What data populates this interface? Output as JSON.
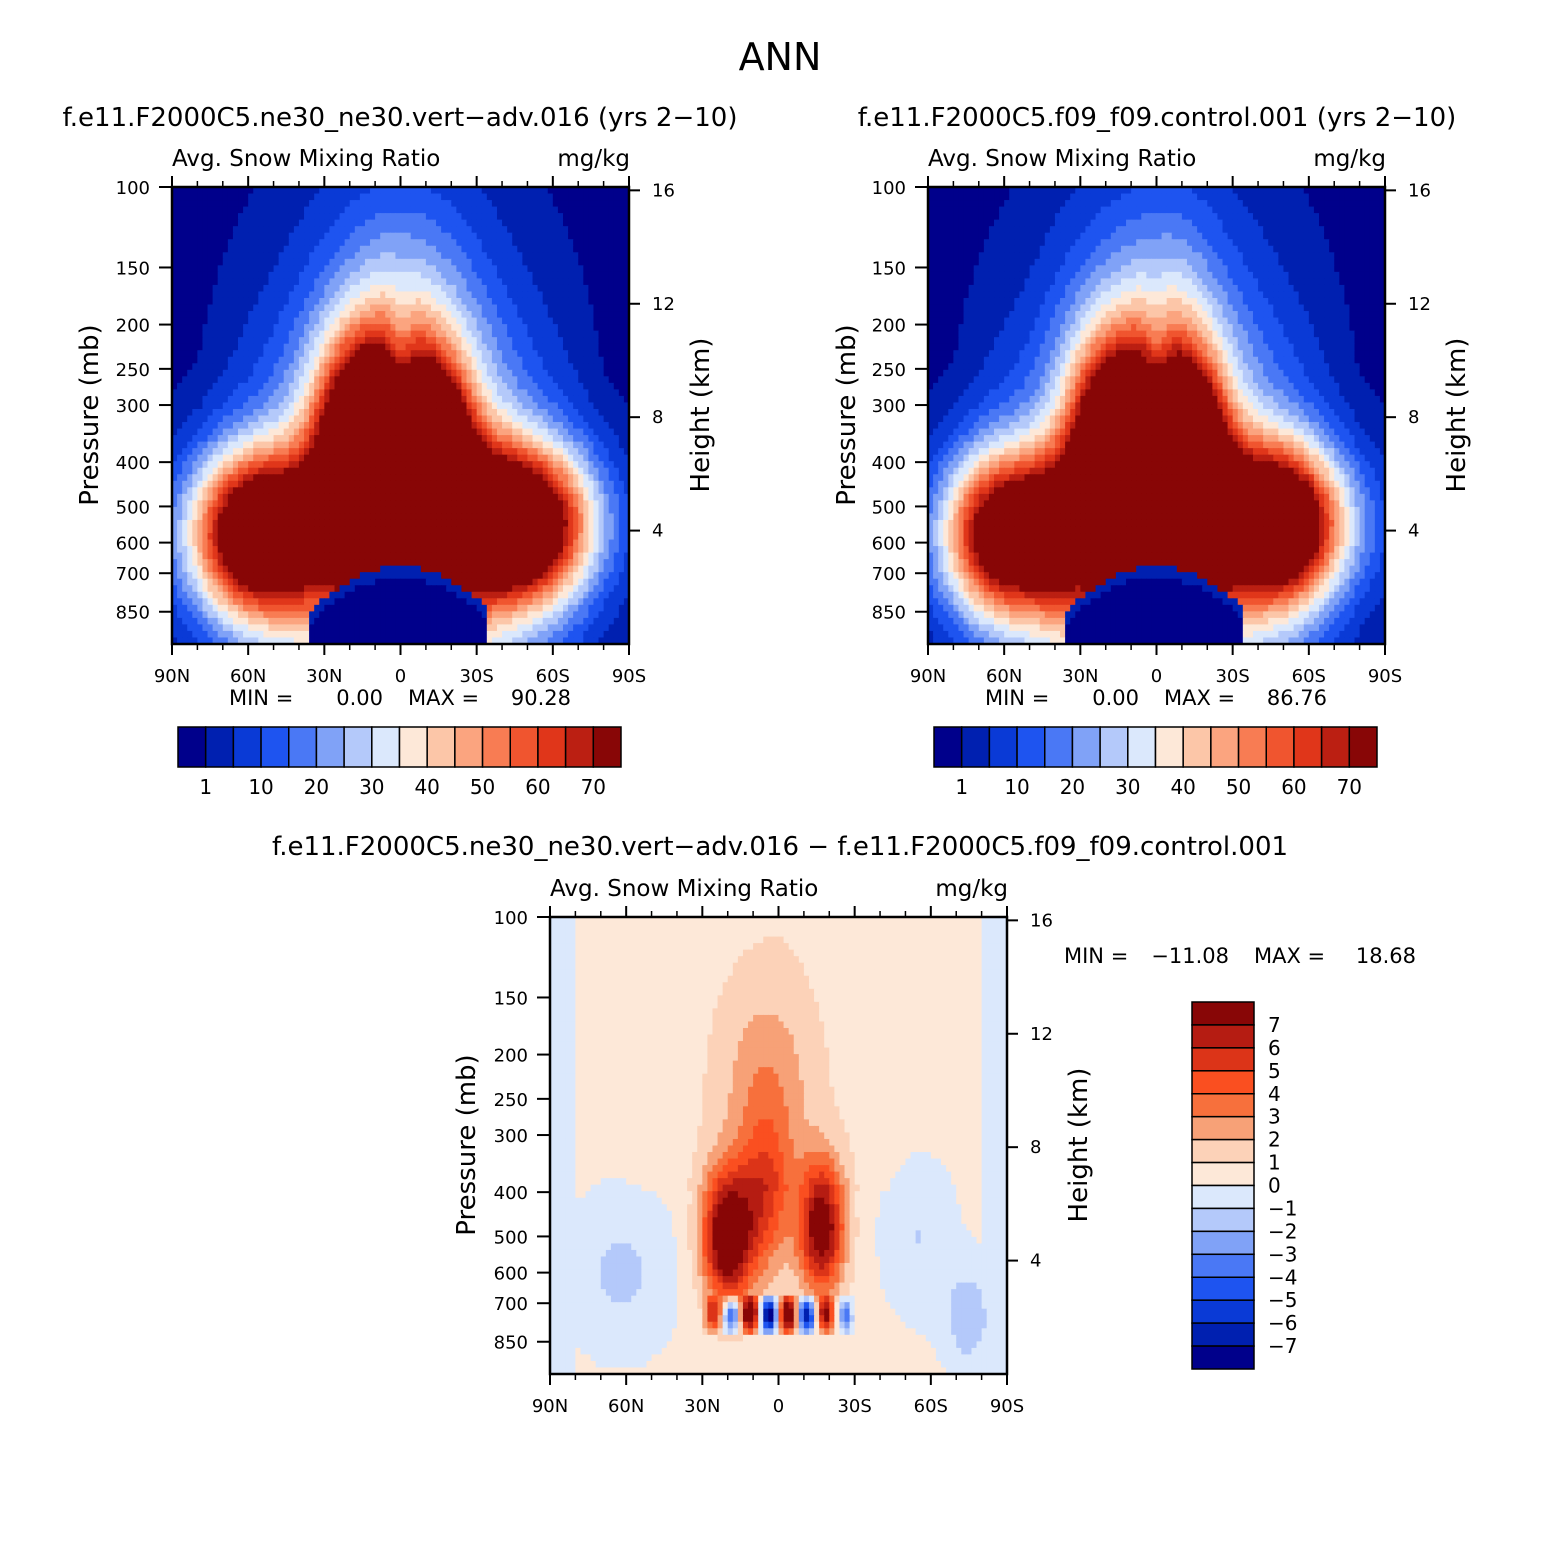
{
  "figure_title": "ANN",
  "chart_data": [
    {
      "id": "p1",
      "type": "heatmap",
      "case_title": "f.e11.F2000C5.ne30_ne30.vert−adv.016 (yrs 2−10)",
      "variable_label": "Avg. Snow Mixing Ratio",
      "units_label": "mg/kg",
      "ylabel": "Pressure (mb)",
      "ylabel_right": "Height (km)",
      "x_ticks": [
        "90N",
        "60N",
        "30N",
        "0",
        "30S",
        "60S",
        "90S"
      ],
      "y_ticks": [
        "100",
        "150",
        "200",
        "250",
        "300",
        "400",
        "500",
        "600",
        "700",
        "850"
      ],
      "y_ticks_right": [
        "16",
        "12",
        "8",
        "4"
      ],
      "min_label": "MIN =",
      "min_value": "0.00",
      "max_label": "MAX =",
      "max_value": "90.28",
      "colorbar_labels": [
        "1",
        "10",
        "20",
        "30",
        "40",
        "50",
        "60",
        "70"
      ],
      "colormap": [
        "#00008b",
        "#0020b0",
        "#0a3ad6",
        "#1e54f0",
        "#4a78f5",
        "#80a2f7",
        "#b4c9fa",
        "#dbe8fc",
        "#fde8d8",
        "#fcc6a8",
        "#fba47f",
        "#f87c53",
        "#f0552f",
        "#e0361a",
        "#bb1f12",
        "#880606"
      ],
      "levels": [
        0,
        1,
        5,
        10,
        15,
        20,
        25,
        30,
        35,
        40,
        45,
        50,
        55,
        60,
        65,
        70
      ],
      "max_data": 90.28,
      "ylim": [
        1000,
        100
      ],
      "xlim": [
        "90N",
        "90S"
      ]
    },
    {
      "id": "p2",
      "type": "heatmap",
      "case_title": "f.e11.F2000C5.f09_f09.control.001 (yrs 2−10)",
      "variable_label": "Avg. Snow Mixing Ratio",
      "units_label": "mg/kg",
      "ylabel": "Pressure (mb)",
      "ylabel_right": "Height (km)",
      "x_ticks": [
        "90N",
        "60N",
        "30N",
        "0",
        "30S",
        "60S",
        "90S"
      ],
      "y_ticks": [
        "100",
        "150",
        "200",
        "250",
        "300",
        "400",
        "500",
        "600",
        "700",
        "850"
      ],
      "y_ticks_right": [
        "16",
        "12",
        "8",
        "4"
      ],
      "min_label": "MIN =",
      "min_value": "0.00",
      "max_label": "MAX =",
      "max_value": "86.76",
      "colorbar_labels": [
        "1",
        "10",
        "20",
        "30",
        "40",
        "50",
        "60",
        "70"
      ],
      "colormap": [
        "#00008b",
        "#0020b0",
        "#0a3ad6",
        "#1e54f0",
        "#4a78f5",
        "#80a2f7",
        "#b4c9fa",
        "#dbe8fc",
        "#fde8d8",
        "#fcc6a8",
        "#fba47f",
        "#f87c53",
        "#f0552f",
        "#e0361a",
        "#bb1f12",
        "#880606"
      ],
      "levels": [
        0,
        1,
        5,
        10,
        15,
        20,
        25,
        30,
        35,
        40,
        45,
        50,
        55,
        60,
        65,
        70
      ],
      "max_data": 86.76,
      "ylim": [
        1000,
        100
      ],
      "xlim": [
        "90N",
        "90S"
      ]
    },
    {
      "id": "p3",
      "type": "heatmap",
      "case_title": "f.e11.F2000C5.ne30_ne30.vert−adv.016 − f.e11.F2000C5.f09_f09.control.001",
      "variable_label": "Avg. Snow Mixing Ratio",
      "units_label": "mg/kg",
      "ylabel": "Pressure (mb)",
      "ylabel_right": "Height (km)",
      "x_ticks": [
        "90N",
        "60N",
        "30N",
        "0",
        "30S",
        "60S",
        "90S"
      ],
      "y_ticks": [
        "100",
        "150",
        "200",
        "250",
        "300",
        "400",
        "500",
        "600",
        "700",
        "850"
      ],
      "y_ticks_right": [
        "16",
        "12",
        "8",
        "4"
      ],
      "min_label": "MIN =",
      "min_value": "−11.08",
      "max_label": "MAX =",
      "max_value": "18.68",
      "colorbar_labels": [
        "7",
        "6",
        "5",
        "4",
        "3",
        "2",
        "1",
        "0",
        "−1",
        "−2",
        "−3",
        "−4",
        "−5",
        "−6",
        "−7"
      ],
      "colormap": [
        "#880606",
        "#b51c12",
        "#dc3418",
        "#fa4f20",
        "#f7703c",
        "#f7a177",
        "#fcd2b8",
        "#fde8d8",
        "#dbe8fc",
        "#b4c9fa",
        "#80a2f7",
        "#4a78f5",
        "#1e54f0",
        "#0a3ad6",
        "#0020b0",
        "#00008b"
      ],
      "ylim": [
        1000,
        100
      ],
      "xlim": [
        "90N",
        "90S"
      ]
    }
  ]
}
